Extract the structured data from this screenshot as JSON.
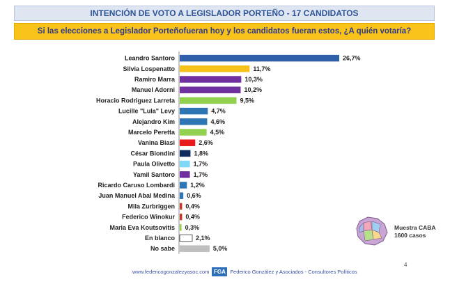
{
  "header": {
    "title": "INTENCIÓN  DE VOTO A LEGISLADOR PORTEÑO  - 17 CANDIDATOS",
    "question": "Si las elecciones a Legislador Porteñofueran hoy y los candidatos fueran estos, ¿A quién votaría?"
  },
  "chart_data": {
    "type": "bar",
    "orientation": "horizontal",
    "categories": [
      "Leandro Santoro",
      "Silvia Lospenatto",
      "Ramiro Marra",
      "Manuel Adorni",
      "Horacio Rodriguez Larreta",
      "Lucille \"Lula\" Levy",
      "Alejandro Kim",
      "Marcelo Peretta",
      "Vanina Biasi",
      "César Biondini",
      "Paula Olivetto",
      "Yamil Santoro",
      "Ricardo Caruso Lombardi",
      "Juan Manuel Abal Medina",
      "Mila Zurbriggen",
      "Federico Winokur",
      "Maria Eva Koutsovitis",
      "En blanco",
      "No sabe"
    ],
    "values": [
      26.7,
      11.7,
      10.3,
      10.2,
      9.5,
      4.7,
      4.6,
      4.5,
      2.6,
      1.8,
      1.7,
      1.7,
      1.2,
      0.6,
      0.4,
      0.4,
      0.3,
      2.1,
      5.0
    ],
    "value_labels": [
      "26,7%",
      "11,7%",
      "10,3%",
      "10,2%",
      "9,5%",
      "4,7%",
      "4,6%",
      "4,5%",
      "2,6%",
      "1,8%",
      "1,7%",
      "1,7%",
      "1,2%",
      "0,6%",
      "0,4%",
      "0,4%",
      "0,3%",
      "2,1%",
      "5,0%"
    ],
    "colors": [
      "#2e5fa8",
      "#f7c21c",
      "#7030a0",
      "#7030a0",
      "#92d050",
      "#2e75b6",
      "#2e75b6",
      "#92d050",
      "#e8191c",
      "#0f2a5c",
      "#7fd8f5",
      "#7030a0",
      "#2e75b6",
      "#2e75b6",
      "#c0392b",
      "#c0392b",
      "#92d050",
      "#ffffff",
      "#bfbfbf"
    ],
    "xlim": [
      0,
      26.7
    ],
    "grid": false,
    "legend": "none"
  },
  "map_icon": "caba-map-icon",
  "sample_note": {
    "line1": "Muestra CABA",
    "line2": "1600 casos"
  },
  "footer": {
    "url": "www.federicogonzalezyasoc.com",
    "logo_text": "FGA",
    "company": "Federico González y Asociados - Consultores Políticos"
  },
  "page_number": "4"
}
